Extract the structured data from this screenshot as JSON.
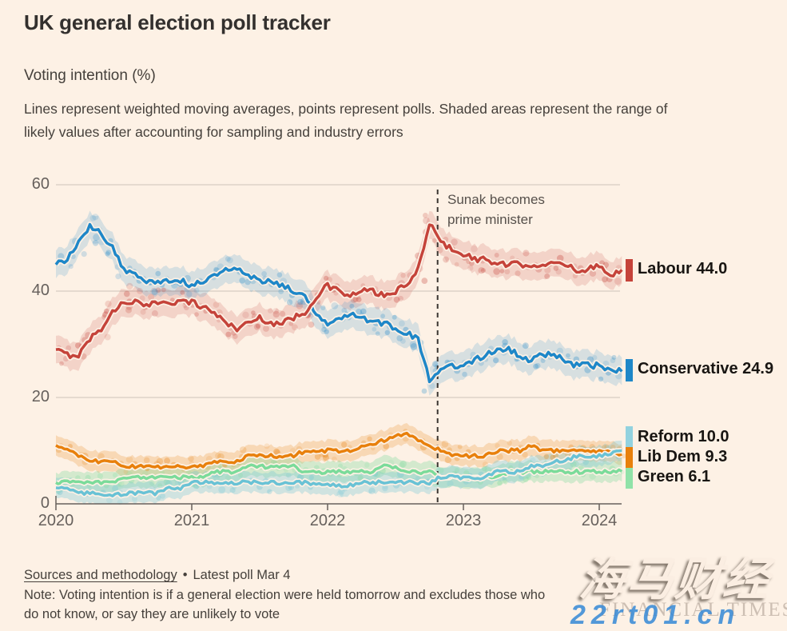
{
  "header": {
    "title": "UK general election poll tracker",
    "subtitle": "Voting intention (%)",
    "description_line1": "Lines represent weighted moving averages, points represent polls. Shaded areas represent the range of",
    "description_line2": "likely values after accounting for sampling and industry errors"
  },
  "chart_data": {
    "type": "line",
    "title": "UK general election poll tracker — voting intention (%)",
    "x_unit": "year (monthly points from Jan 2020 to Mar 2024)",
    "x_start": 2020.0,
    "x_step": 0.0833,
    "ylim": [
      0,
      60
    ],
    "yticks": [
      "0",
      "20",
      "40",
      "60"
    ],
    "ytick_values": [
      0,
      20,
      40,
      60
    ],
    "xticks": [
      "2020",
      "2021",
      "2022",
      "2023",
      "2024"
    ],
    "xtick_values": [
      2020,
      2021,
      2022,
      2023,
      2024
    ],
    "grid": "horizontal",
    "grid_color": "#CDC3B9",
    "axis_color": "#66605C",
    "annotation": {
      "line1": "Sunak becomes",
      "line2": "prime minister",
      "x": 2022.81,
      "line_color": "#3A3531"
    },
    "series": [
      {
        "name": "Labour",
        "end_label": "Labour 44.0",
        "end_value": 44.0,
        "color": "#C5433A",
        "swatch_color": "#C5433A",
        "band_halfwidth": 2.6,
        "band_opacity": 0.17,
        "noise": 0.55,
        "scatter_per_month": 3,
        "scatter_spread": 3.0,
        "values": [
          29,
          28,
          28,
          31,
          33,
          36,
          38,
          38,
          37,
          38,
          38,
          38,
          38,
          37,
          36,
          34,
          33,
          34,
          35,
          34,
          34,
          35,
          36,
          39,
          41,
          40,
          39,
          40,
          40,
          39,
          40,
          41,
          44,
          53,
          49,
          48,
          47,
          46,
          46,
          45,
          45,
          45,
          45,
          45,
          45,
          45,
          44,
          44,
          45,
          43,
          44
        ]
      },
      {
        "name": "Conservative",
        "end_label": "Conservative 24.9",
        "end_value": 24.9,
        "color": "#1E87C8",
        "swatch_color": "#1E87C8",
        "band_halfwidth": 2.6,
        "band_opacity": 0.17,
        "noise": 0.55,
        "scatter_per_month": 3,
        "scatter_spread": 3.0,
        "values": [
          45,
          46,
          49,
          52,
          51,
          48,
          44,
          43,
          42,
          42,
          42,
          42,
          41,
          42,
          43,
          44,
          44,
          43,
          42,
          42,
          41,
          40,
          39,
          36,
          34,
          35,
          36,
          35,
          34,
          34,
          33,
          32,
          31,
          23,
          25,
          26,
          26,
          27,
          28,
          29,
          29,
          28,
          27,
          28,
          28,
          27,
          26,
          26,
          26,
          25,
          24.9
        ]
      },
      {
        "name": "Reform",
        "end_label": "Reform 10.0",
        "end_value": 10.0,
        "color": "#69C2D5",
        "swatch_color": "#92D2DF",
        "band_halfwidth": 1.9,
        "band_opacity": 0.3,
        "noise": 0.35,
        "scatter_per_month": 2,
        "scatter_spread": 2.0,
        "values": [
          3,
          3,
          2,
          2,
          1.5,
          1.5,
          2,
          2,
          2,
          2,
          3,
          3,
          4,
          4,
          4,
          4,
          4,
          4,
          4,
          4,
          4,
          4,
          4,
          3.5,
          3.5,
          3.5,
          3.5,
          4,
          4,
          4,
          4,
          4,
          4,
          4,
          5,
          5,
          5,
          5,
          5,
          6,
          6,
          6,
          7,
          7,
          8,
          8,
          9,
          9,
          9,
          9.5,
          10
        ]
      },
      {
        "name": "Lib Dem",
        "end_label": "Lib Dem 9.3",
        "end_value": 9.3,
        "color": "#E8800C",
        "swatch_color": "#E8800C",
        "band_halfwidth": 1.9,
        "band_opacity": 0.22,
        "noise": 0.35,
        "scatter_per_month": 2,
        "scatter_spread": 2.0,
        "values": [
          11,
          10,
          9,
          8,
          8,
          8,
          7,
          7,
          7,
          7,
          7,
          7,
          7,
          7,
          8,
          8,
          8,
          9,
          9,
          9,
          9,
          9,
          10,
          10,
          10,
          10,
          10,
          11,
          11,
          12,
          13,
          13,
          12,
          11,
          10,
          9,
          9,
          9,
          9,
          10,
          10,
          10,
          11,
          10,
          10,
          10,
          10,
          10,
          10,
          10,
          9.3
        ]
      },
      {
        "name": "Green",
        "end_label": "Green 6.1",
        "end_value": 6.1,
        "color": "#7BDB9A",
        "swatch_color": "#90E2A8",
        "band_halfwidth": 1.9,
        "band_opacity": 0.32,
        "noise": 0.35,
        "scatter_per_month": 2,
        "scatter_spread": 2.0,
        "values": [
          4,
          4,
          4,
          4,
          4,
          4,
          5,
          5,
          5,
          5,
          5,
          5,
          5,
          5,
          6,
          6,
          6,
          7,
          7,
          7,
          7,
          7,
          6,
          6,
          6,
          6,
          6,
          6,
          6,
          7,
          7,
          6,
          6,
          6,
          5,
          5,
          5,
          5,
          5,
          5,
          6,
          6,
          6,
          6,
          6,
          6,
          6,
          6,
          6,
          6,
          6.1
        ]
      }
    ]
  },
  "footer": {
    "sources_link": "Sources and methodology",
    "separator": "•",
    "latest_poll": "Latest poll Mar 4",
    "note_line1": "Note: Voting intention is if a general election were held tomorrow and excludes those who",
    "note_line2": "do not know, or say they are unlikely to vote"
  },
  "watermark": {
    "cn_text": "海马财经",
    "ft_text": "FINANCIAL TIMES",
    "url_text": "22rt01.cn"
  },
  "colors": {
    "background": "#FDF1E5",
    "title_text": "#33302E",
    "tick_text": "#66605C",
    "watermark_url_blue": "#3A8BD6"
  }
}
